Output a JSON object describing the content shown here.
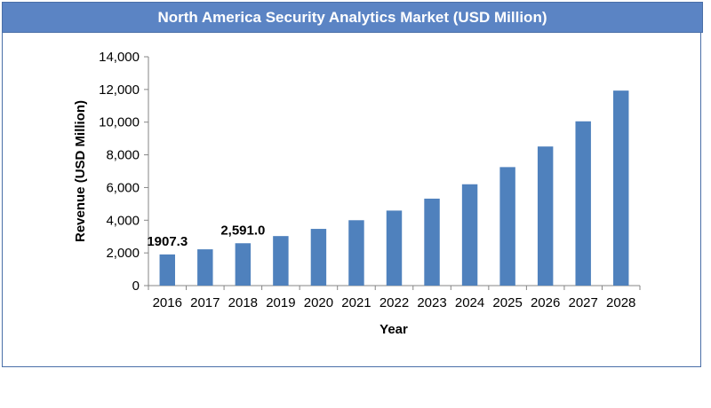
{
  "chart_data": {
    "type": "bar",
    "title": "North America Security Analytics Market (USD Million)",
    "xlabel": "Year",
    "ylabel": "Revenue (USD Million)",
    "categories": [
      "2016",
      "2017",
      "2018",
      "2019",
      "2020",
      "2021",
      "2022",
      "2023",
      "2024",
      "2025",
      "2026",
      "2027",
      "2028"
    ],
    "values": [
      1907.3,
      2220,
      2591.0,
      3030,
      3470,
      4000,
      4590,
      5320,
      6200,
      7250,
      8510,
      10050,
      11930
    ],
    "data_labels": [
      {
        "index": 0,
        "text": "1907.3"
      },
      {
        "index": 2,
        "text": "2,591.0"
      }
    ],
    "ylim": [
      0,
      14000
    ],
    "yticks": [
      {
        "value": 0,
        "label": "0"
      },
      {
        "value": 2000,
        "label": "2,000"
      },
      {
        "value": 4000,
        "label": "4,000"
      },
      {
        "value": 6000,
        "label": "6,000"
      },
      {
        "value": 8000,
        "label": "8,000"
      },
      {
        "value": 10000,
        "label": "10,000"
      },
      {
        "value": 12000,
        "label": "12,000"
      },
      {
        "value": 14000,
        "label": "14,000"
      }
    ],
    "grid": false,
    "legend": "none",
    "bar_color": "#4f81bd"
  }
}
